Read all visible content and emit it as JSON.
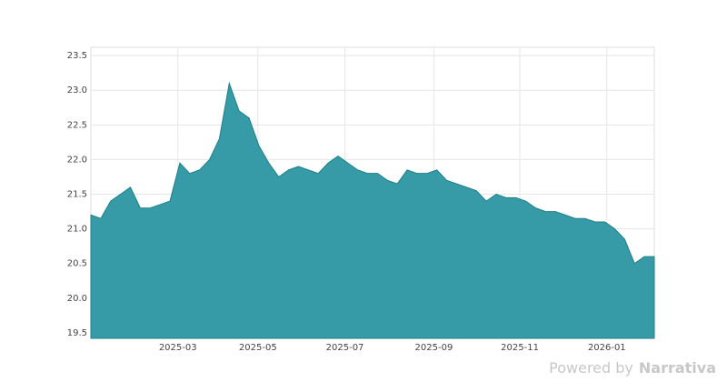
{
  "chart_data": {
    "type": "area",
    "values": [
      21.2,
      21.15,
      21.4,
      21.5,
      21.6,
      21.3,
      21.3,
      21.35,
      21.4,
      21.95,
      21.8,
      21.85,
      22.0,
      22.3,
      23.1,
      22.7,
      22.6,
      22.2,
      21.95,
      21.75,
      21.85,
      21.9,
      21.85,
      21.8,
      21.95,
      22.05,
      21.95,
      21.85,
      21.8,
      21.8,
      21.7,
      21.65,
      21.85,
      21.8,
      21.8,
      21.85,
      21.7,
      21.65,
      21.6,
      21.55,
      21.4,
      21.5,
      21.45,
      21.45,
      21.4,
      21.3,
      21.25,
      21.25,
      21.2,
      21.15,
      21.15,
      21.1,
      21.1,
      21.0,
      20.85,
      20.5,
      20.6,
      20.6
    ],
    "color": "#2f98a3",
    "xlim": [
      0,
      57
    ],
    "xticks": [
      {
        "value": 8.8,
        "label": "2025-03"
      },
      {
        "value": 16.9,
        "label": "2025-05"
      },
      {
        "value": 25.7,
        "label": "2025-07"
      },
      {
        "value": 34.7,
        "label": "2025-09"
      },
      {
        "value": 43.4,
        "label": "2025-11"
      },
      {
        "value": 52.2,
        "label": "2026-01"
      }
    ],
    "ylim": [
      19.42,
      23.62
    ],
    "yticks": [
      19.5,
      {
        "value": 20,
        "label": "20.0"
      },
      20.5,
      {
        "value": 21,
        "label": "21.0"
      },
      21.5,
      {
        "value": 22,
        "label": "22.0"
      },
      22.5,
      {
        "value": 23,
        "label": "23.0"
      },
      23.5
    ],
    "grid": true
  },
  "footer": {
    "powered": "Powered by",
    "brand": "Narrativa"
  }
}
